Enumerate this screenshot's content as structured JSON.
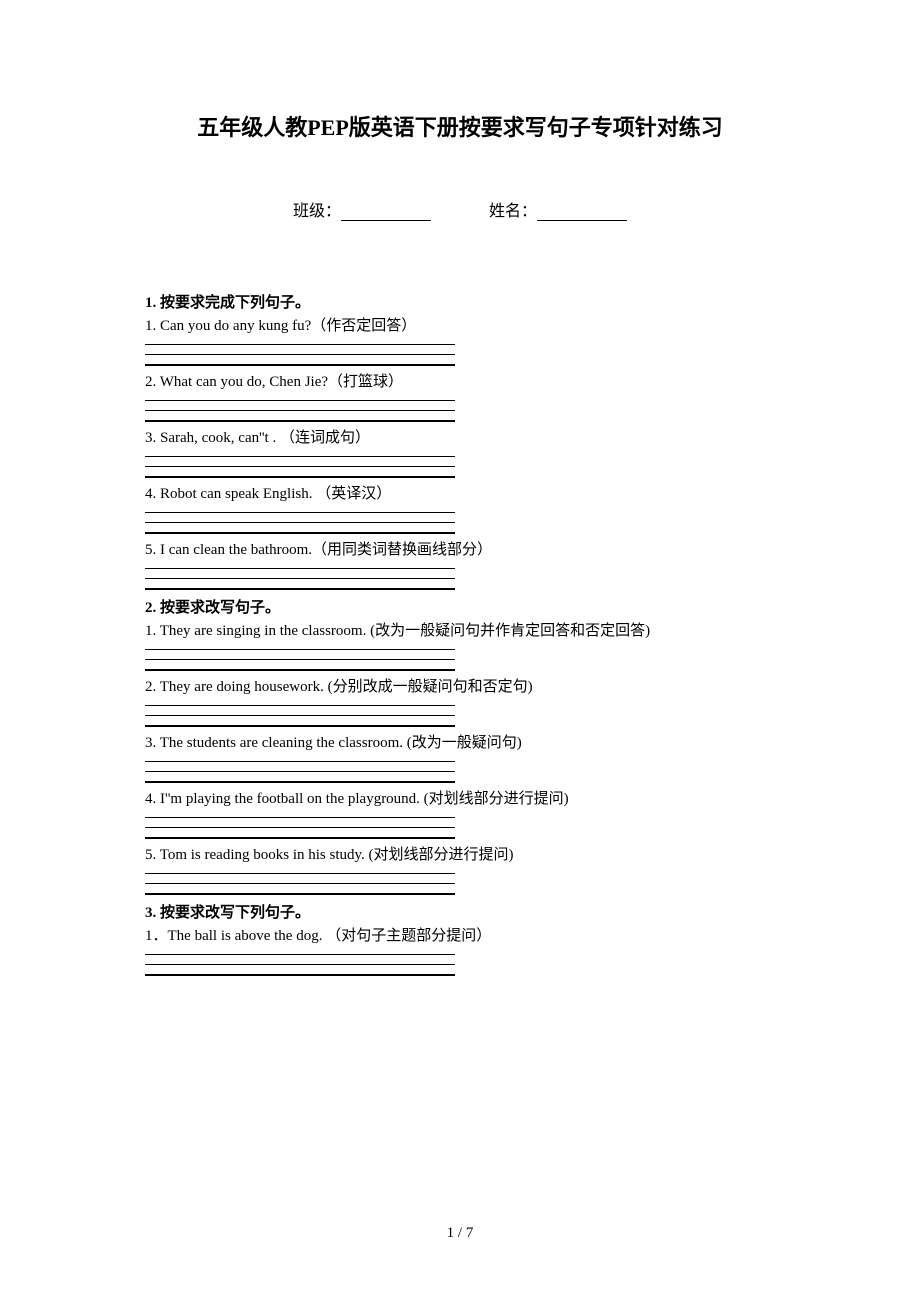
{
  "title": "五年级人教PEP版英语下册按要求写句子专项针对练习",
  "form": {
    "class_label": "班级：",
    "name_label": "姓名："
  },
  "sections": [
    {
      "title": "1. 按要求完成下列句子。",
      "questions": [
        "1. Can you do any kung fu?（作否定回答）",
        "2. What can you do, Chen Jie?（打篮球）",
        "3. Sarah, cook, can''t . （连词成句）",
        "4. Robot can speak English. （英译汉）",
        "5. I can clean the bathroom.（用同类词替换画线部分）"
      ]
    },
    {
      "title": "2. 按要求改写句子。",
      "questions": [
        "1. They are singing in the classroom. (改为一般疑问句并作肯定回答和否定回答)",
        "2. They are doing housework. (分别改成一般疑问句和否定句)",
        "3. The students are cleaning the classroom.  (改为一般疑问句)",
        "4. I''m playing the football on the playground. (对划线部分进行提问)",
        "5. Tom is reading books in his study. (对划线部分进行提问)"
      ]
    },
    {
      "title": "3. 按要求改写下列句子。",
      "questions": [
        "1．The ball is above the dog.  （对句子主题部分提问）"
      ]
    }
  ],
  "page_number": "1 / 7"
}
